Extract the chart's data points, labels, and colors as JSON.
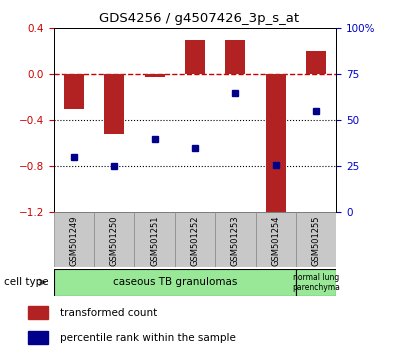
{
  "title": "GDS4256 / g4507426_3p_s_at",
  "samples": [
    "GSM501249",
    "GSM501250",
    "GSM501251",
    "GSM501252",
    "GSM501253",
    "GSM501254",
    "GSM501255"
  ],
  "red_bars": [
    -0.3,
    -0.52,
    -0.02,
    0.3,
    0.3,
    -1.22,
    0.2
  ],
  "blue_dots": [
    30,
    25,
    40,
    35,
    65,
    26,
    55
  ],
  "ylim_left": [
    -1.2,
    0.4
  ],
  "ylim_right": [
    0,
    100
  ],
  "yticks_left": [
    -1.2,
    -0.8,
    -0.4,
    0.0,
    0.4
  ],
  "yticks_right": [
    0,
    25,
    50,
    75,
    100
  ],
  "ytick_labels_right": [
    "0",
    "25",
    "50",
    "75",
    "100%"
  ],
  "hline_y": 0.0,
  "dotted_lines": [
    -0.4,
    -0.8
  ],
  "cell_type_label": "cell type",
  "group1_label": "caseous TB granulomas",
  "group2_label": "normal lung\nparenchyma",
  "group1_count": 6,
  "group2_count": 1,
  "legend_red": "transformed count",
  "legend_blue": "percentile rank within the sample",
  "bar_color": "#B22222",
  "dot_color": "#00008B",
  "hline_color": "#CC0000",
  "tick_label_color_left": "#CC0000",
  "tick_label_color_right": "#0000CC",
  "cell_bg_color": "#98E898",
  "sample_box_color": "#C8C8C8",
  "bar_width": 0.5
}
